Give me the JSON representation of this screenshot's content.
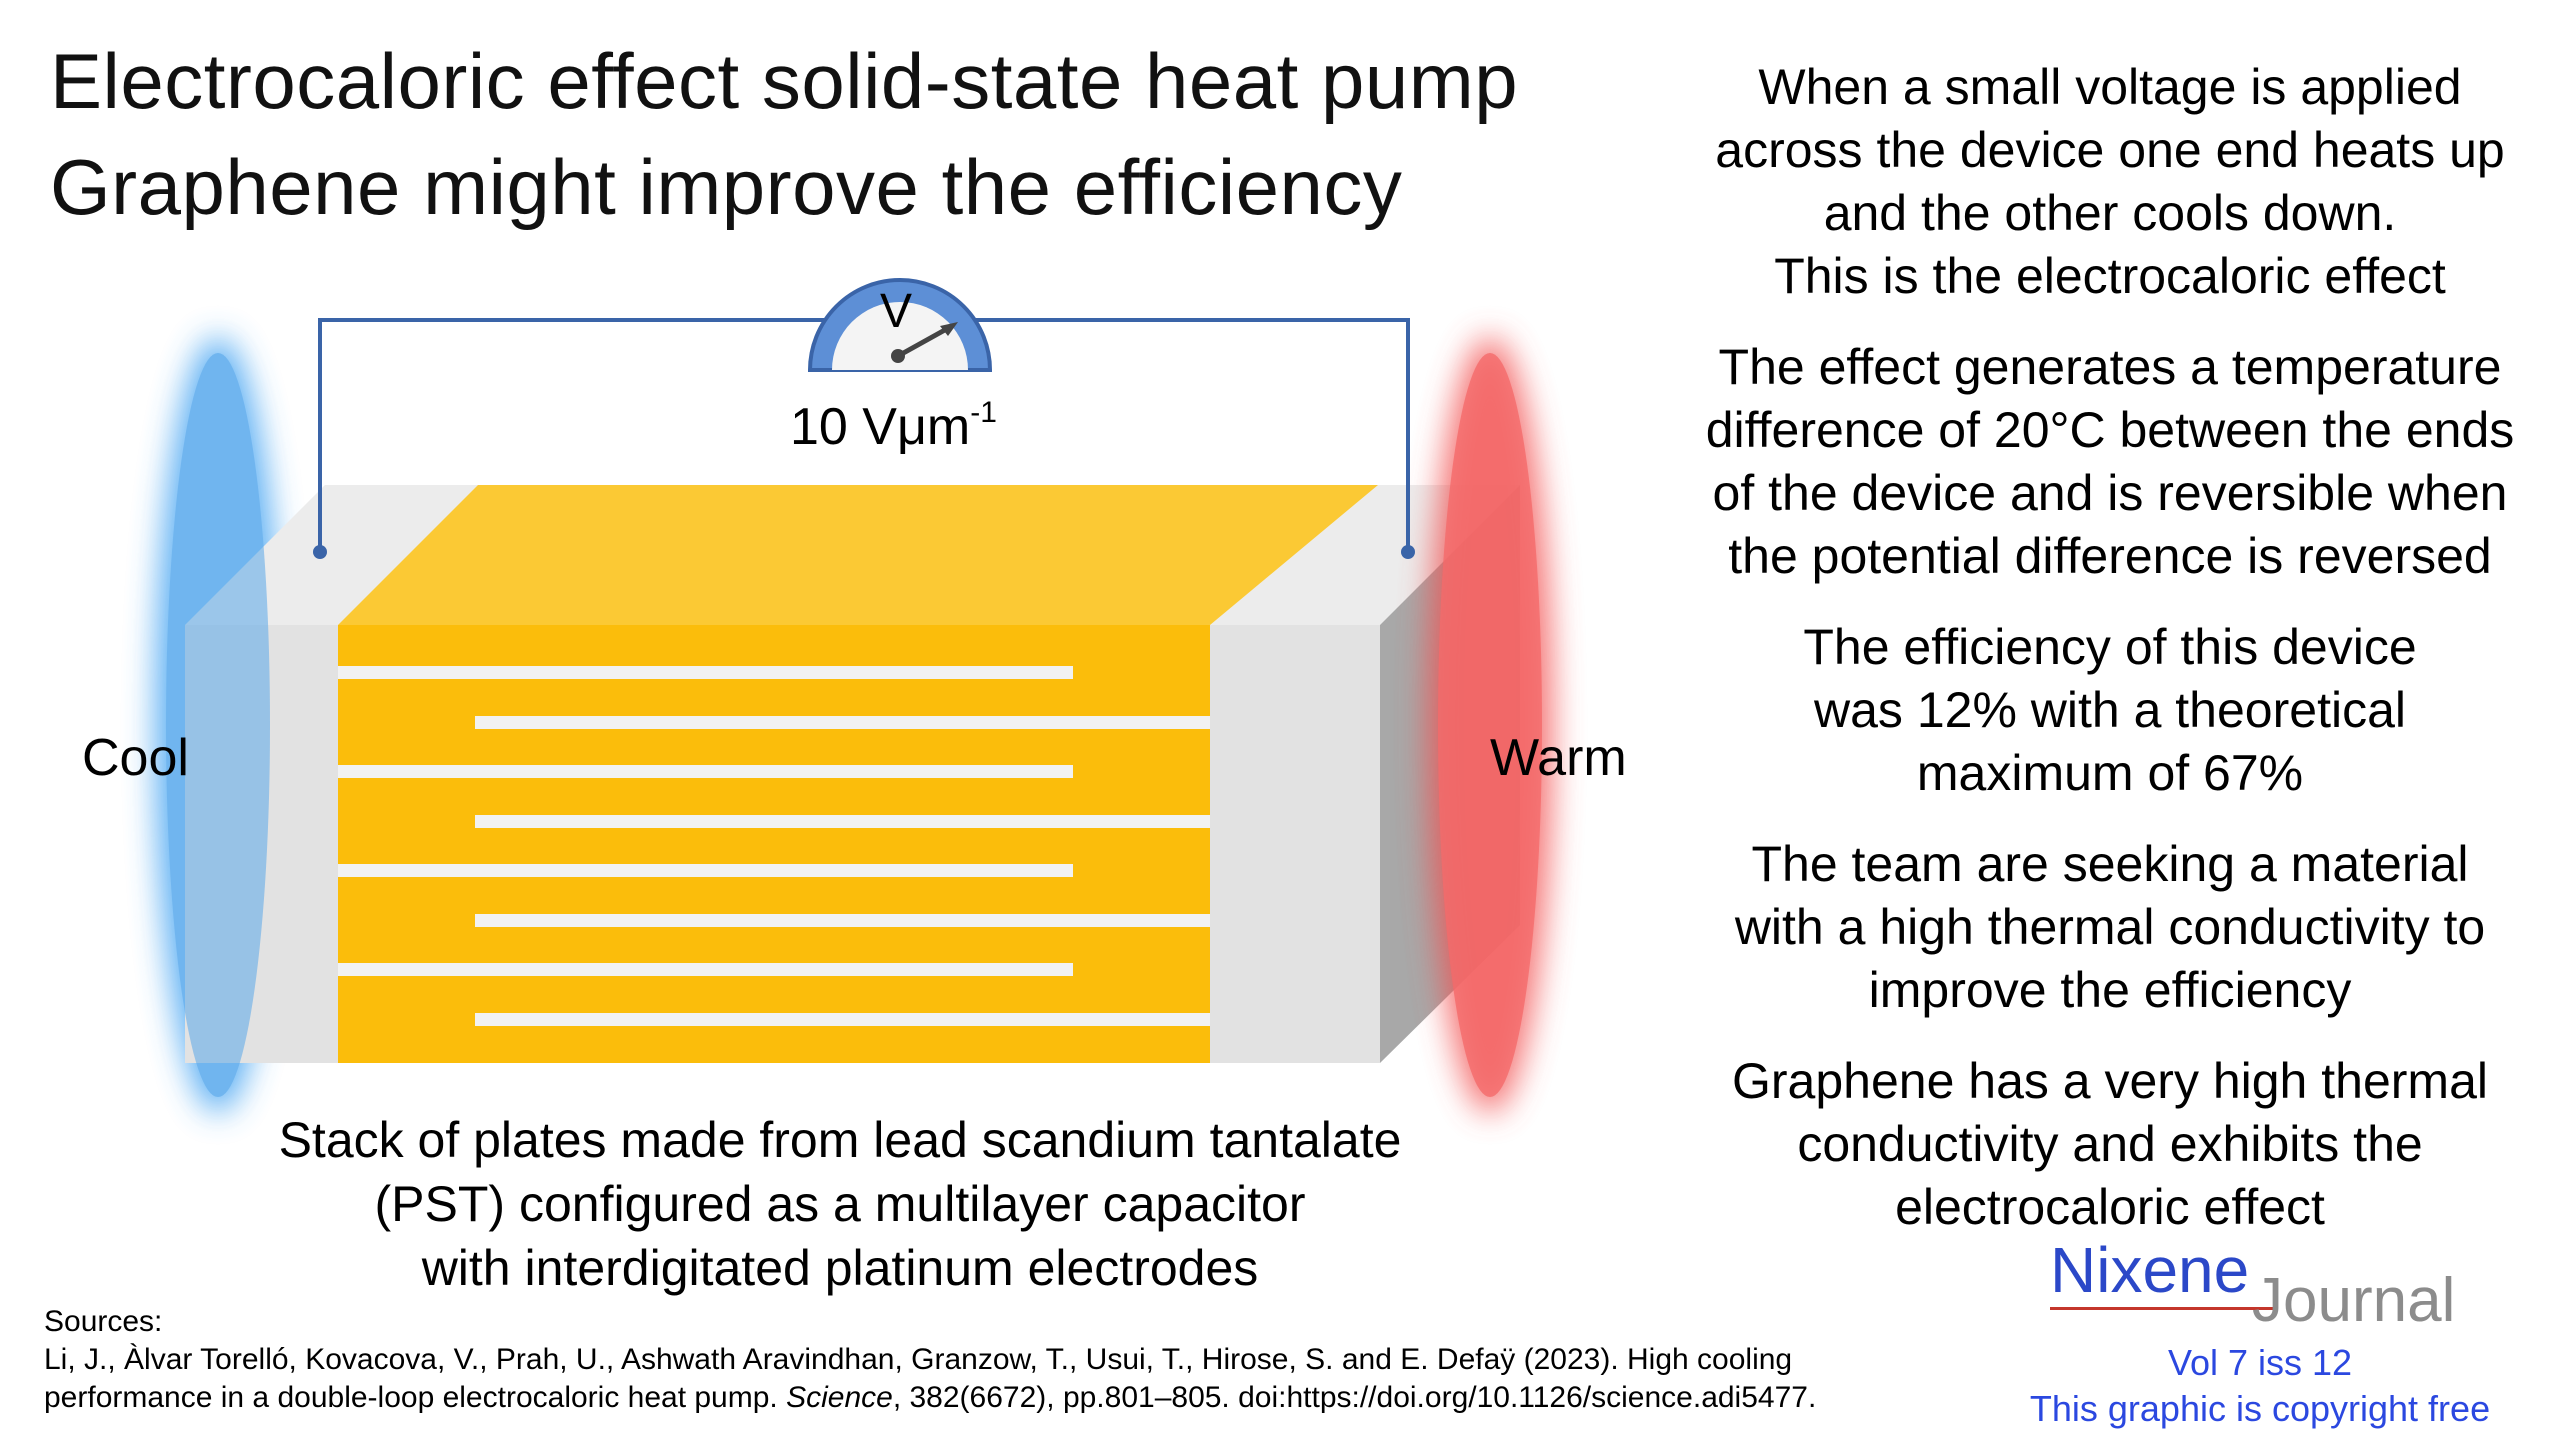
{
  "title": {
    "line1": "Electrocaloric effect solid-state heat pump",
    "line2": "Graphene might improve the efficiency"
  },
  "diagram": {
    "voltmeter_letter": "V",
    "field_value": "10 Vμm",
    "field_exponent": "-1",
    "cool_label": "Cool",
    "warm_label": "Warm",
    "caption": [
      "Stack of plates made from lead scandium tantalate",
      "(PST) configured as a multilayer capacitor",
      "with interdigitated platinum electrodes"
    ],
    "colors": {
      "cool": "#6fb6f0",
      "warm": "#f46a6a",
      "pst": "#fbbd0b",
      "electrode": "#e8e8e8",
      "wire": "#3a64a8"
    }
  },
  "right_column": [
    [
      "When a small voltage is applied",
      "across the device one end heats up",
      "and the other cools down.",
      "This is the electrocaloric effect"
    ],
    [
      "The effect generates a temperature",
      "difference of 20°C between the ends",
      "of the device and is reversible when",
      "the potential difference is reversed"
    ],
    [
      "The efficiency of this device",
      "was 12% with a theoretical",
      "maximum of 67%"
    ],
    [
      "The team are seeking a material",
      "with a high thermal conductivity to",
      "improve the efficiency"
    ],
    [
      "Graphene has a very high thermal",
      "conductivity and exhibits the",
      "electrocaloric effect"
    ]
  ],
  "sources": {
    "heading": "Sources:",
    "line1": "Li, J., Àlvar Torelló, Kovacova, V., Prah, U., Ashwath Aravindhan, Granzow, T., Usui, T., Hirose, S. and E. Defaÿ (2023). High cooling",
    "line2_pre": "performance in a double-loop electrocaloric heat pump. ",
    "line2_journal": "Science",
    "line2_post": ", 382(6672), pp.801–805. doi:https://doi.org/10.1126/science.adi5477."
  },
  "brand": {
    "name_main": "Nixene",
    "name_sub": "Journal",
    "volume": "Vol 7 iss 12",
    "copyright": "This graphic is copyright free"
  }
}
